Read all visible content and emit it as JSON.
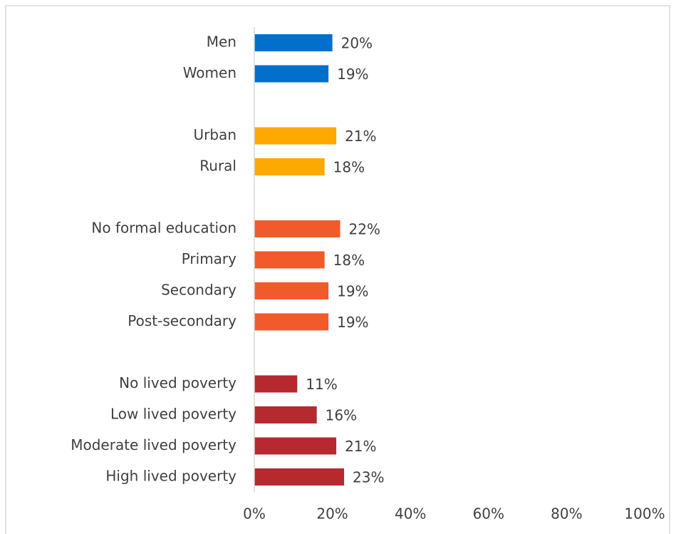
{
  "chart_data": {
    "type": "bar",
    "orientation": "horizontal",
    "series": [
      {
        "color": "#0070cc",
        "categories": [
          "Men",
          "Women"
        ],
        "values": [
          20,
          19
        ],
        "value_labels": [
          "20%",
          "19%"
        ]
      },
      {
        "color": "#ffa800",
        "categories": [
          "Urban",
          "Rural"
        ],
        "values": [
          21,
          18
        ],
        "value_labels": [
          "21%",
          "18%"
        ]
      },
      {
        "color": "#f15a2b",
        "categories": [
          "No formal education",
          "Primary",
          "Secondary",
          "Post-secondary"
        ],
        "values": [
          22,
          18,
          19,
          19
        ],
        "value_labels": [
          "22%",
          "18%",
          "19%",
          "19%"
        ]
      },
      {
        "color": "#b5292f",
        "categories": [
          "No lived poverty",
          "Low lived poverty",
          "Moderate lived poverty",
          "High lived poverty"
        ],
        "values": [
          11,
          16,
          21,
          23
        ],
        "value_labels": [
          "11%",
          "16%",
          "21%",
          "23%"
        ]
      }
    ],
    "xlim": [
      0,
      100
    ],
    "xticks": [
      {
        "value": 0,
        "label": "0%"
      },
      {
        "value": 20,
        "label": "20%"
      },
      {
        "value": 40,
        "label": "40%"
      },
      {
        "value": 60,
        "label": "60%"
      },
      {
        "value": 80,
        "label": "80%"
      },
      {
        "value": 100,
        "label": "100%"
      }
    ]
  }
}
